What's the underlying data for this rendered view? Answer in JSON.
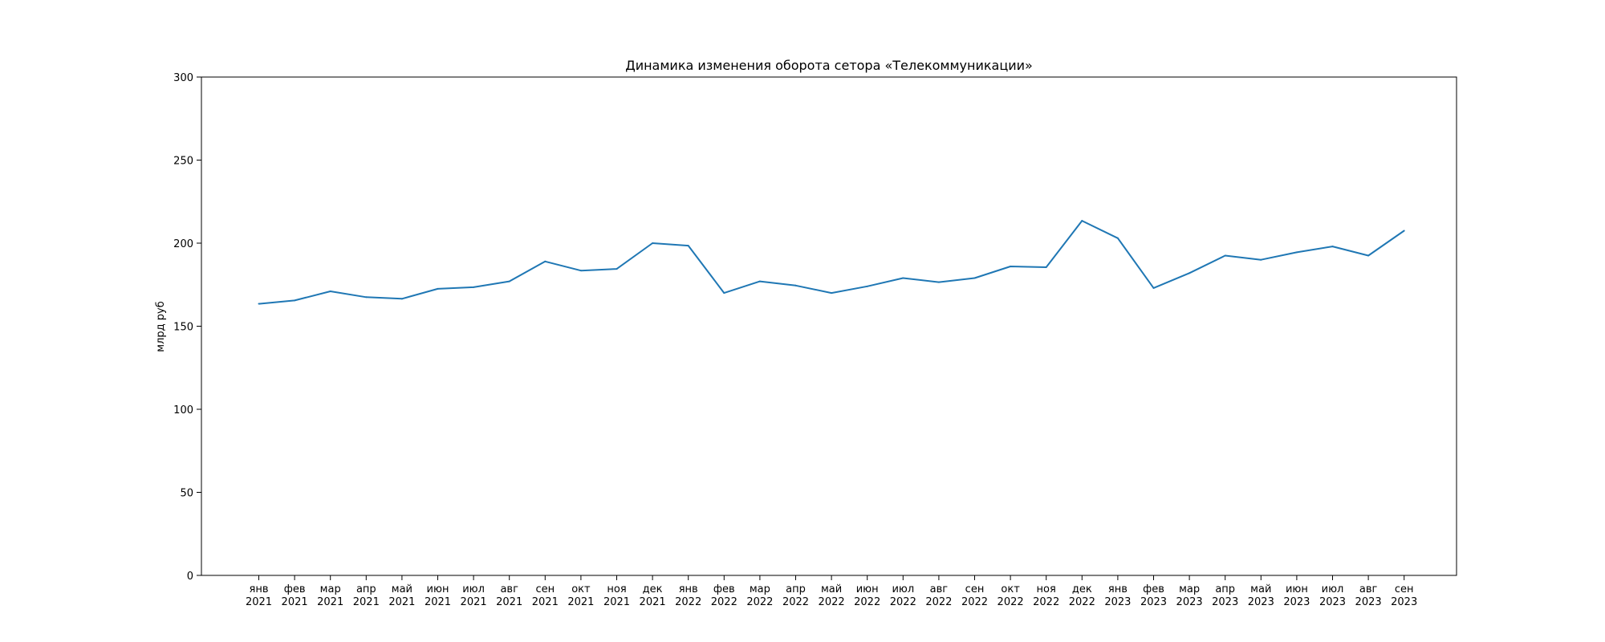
{
  "chart_data": {
    "type": "line",
    "title": "Динамика изменения оборота сетора «Телекоммуникации»",
    "xlabel": "",
    "ylabel": "млрд руб",
    "ylim": [
      0,
      300
    ],
    "yticks": [
      "0",
      "50",
      "100",
      "150",
      "200",
      "250",
      "300"
    ],
    "grid": false,
    "categories": [
      [
        "янв",
        "2021"
      ],
      [
        "фев",
        "2021"
      ],
      [
        "мар",
        "2021"
      ],
      [
        "апр",
        "2021"
      ],
      [
        "май",
        "2021"
      ],
      [
        "июн",
        "2021"
      ],
      [
        "июл",
        "2021"
      ],
      [
        "авг",
        "2021"
      ],
      [
        "сен",
        "2021"
      ],
      [
        "окт",
        "2021"
      ],
      [
        "ноя",
        "2021"
      ],
      [
        "дек",
        "2021"
      ],
      [
        "янв",
        "2022"
      ],
      [
        "фев",
        "2022"
      ],
      [
        "мар",
        "2022"
      ],
      [
        "апр",
        "2022"
      ],
      [
        "май",
        "2022"
      ],
      [
        "июн",
        "2022"
      ],
      [
        "июл",
        "2022"
      ],
      [
        "авг",
        "2022"
      ],
      [
        "сен",
        "2022"
      ],
      [
        "окт",
        "2022"
      ],
      [
        "ноя",
        "2022"
      ],
      [
        "дек",
        "2022"
      ],
      [
        "янв",
        "2023"
      ],
      [
        "фев",
        "2023"
      ],
      [
        "мар",
        "2023"
      ],
      [
        "апр",
        "2023"
      ],
      [
        "май",
        "2023"
      ],
      [
        "июн",
        "2023"
      ],
      [
        "июл",
        "2023"
      ],
      [
        "авг",
        "2023"
      ],
      [
        "сен",
        "2023"
      ]
    ],
    "series": [
      {
        "color": "#1f77b4",
        "values": [
          163.5,
          165.5,
          171,
          167.5,
          166.5,
          172.5,
          173.5,
          177,
          189,
          183.5,
          184.5,
          200,
          198.5,
          170,
          177,
          174.5,
          170,
          174,
          179,
          176.5,
          179,
          186,
          185.5,
          213.5,
          203,
          173,
          182,
          192.5,
          190,
          194.5,
          198,
          192.5,
          207.5
        ]
      }
    ]
  }
}
